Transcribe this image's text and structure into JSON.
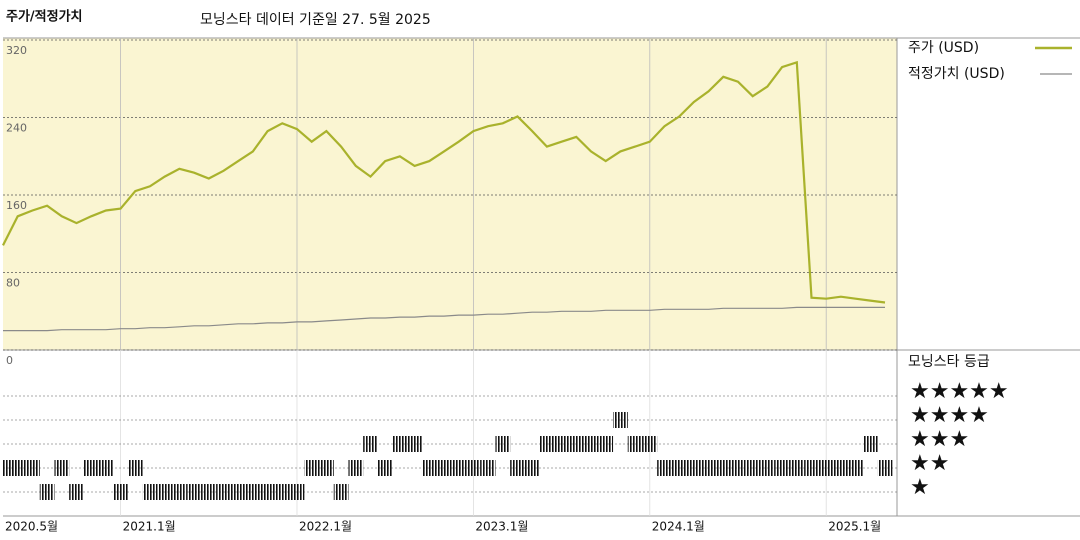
{
  "chart_data": {
    "type": "line",
    "title": "주가/적정가치",
    "subtitle": "모닝스타 데이터 기준일 27. 5월 2025",
    "x": [
      "2020-05",
      "2020-06",
      "2020-07",
      "2020-08",
      "2020-09",
      "2020-10",
      "2020-11",
      "2020-12",
      "2021-01",
      "2021-02",
      "2021-03",
      "2021-04",
      "2021-05",
      "2021-06",
      "2021-07",
      "2021-08",
      "2021-09",
      "2021-10",
      "2021-11",
      "2021-12",
      "2022-01",
      "2022-02",
      "2022-03",
      "2022-04",
      "2022-05",
      "2022-06",
      "2022-07",
      "2022-08",
      "2022-09",
      "2022-10",
      "2022-11",
      "2022-12",
      "2023-01",
      "2023-02",
      "2023-03",
      "2023-04",
      "2023-05",
      "2023-06",
      "2023-07",
      "2023-08",
      "2023-09",
      "2023-10",
      "2023-11",
      "2023-12",
      "2024-01",
      "2024-02",
      "2024-03",
      "2024-04",
      "2024-05",
      "2024-06",
      "2024-07",
      "2024-08",
      "2024-09",
      "2024-10",
      "2024-11",
      "2024-12",
      "2025-01",
      "2025-02",
      "2025-03",
      "2025-04",
      "2025-05"
    ],
    "xlim": [
      "2020-05",
      "2025-05"
    ],
    "xticks": [
      {
        "value": "2020-05",
        "label": "2020.5월"
      },
      {
        "value": "2021-01",
        "label": "2021.1월"
      },
      {
        "value": "2022-01",
        "label": "2022.1월"
      },
      {
        "value": "2023-01",
        "label": "2023.1월"
      },
      {
        "value": "2024-01",
        "label": "2024.1월"
      },
      {
        "value": "2025-01",
        "label": "2025.1월"
      }
    ],
    "ylim": [
      0,
      320
    ],
    "yticks": [
      0,
      80,
      160,
      240,
      320
    ],
    "series": [
      {
        "name": "주가 (USD)",
        "color": "#a9b22c",
        "values": [
          108,
          138,
          144,
          149,
          138,
          131,
          138,
          144,
          146,
          164,
          169,
          179,
          187,
          183,
          177,
          185,
          195,
          205,
          226,
          234,
          228,
          215,
          226,
          210,
          190,
          179,
          195,
          200,
          190,
          195,
          205,
          215,
          226,
          231,
          234,
          241,
          226,
          210,
          215,
          220,
          205,
          195,
          205,
          210,
          215,
          231,
          241,
          256,
          267,
          282,
          277,
          262,
          272,
          292,
          297,
          54,
          53,
          55,
          53,
          51,
          49
        ]
      },
      {
        "name": "적정가치 (USD)",
        "color": "#8a8a8a",
        "values": [
          20,
          20,
          20,
          20,
          21,
          21,
          21,
          21,
          22,
          22,
          23,
          23,
          24,
          25,
          25,
          26,
          27,
          27,
          28,
          28,
          29,
          29,
          30,
          31,
          32,
          33,
          33,
          34,
          34,
          35,
          35,
          36,
          36,
          37,
          37,
          38,
          39,
          39,
          40,
          40,
          40,
          41,
          41,
          41,
          41,
          42,
          42,
          42,
          42,
          43,
          43,
          43,
          43,
          43,
          44,
          44,
          44,
          44,
          44,
          44,
          44
        ]
      }
    ],
    "rating": {
      "title": "모닝스타 등급",
      "levels": [
        "★★★★★",
        "★★★★",
        "★★★",
        "★★",
        "★"
      ],
      "values": [
        2,
        2,
        2,
        1,
        2,
        1,
        2,
        2,
        1,
        2,
        1,
        1,
        1,
        1,
        1,
        1,
        1,
        1,
        1,
        1,
        1,
        2,
        2,
        1,
        2,
        3,
        2,
        3,
        3,
        2,
        2,
        2,
        2,
        2,
        3,
        2,
        2,
        3,
        3,
        3,
        3,
        3,
        4,
        3,
        3,
        2,
        2,
        2,
        2,
        2,
        2,
        2,
        2,
        2,
        2,
        2,
        2,
        2,
        2,
        3,
        2
      ]
    }
  }
}
